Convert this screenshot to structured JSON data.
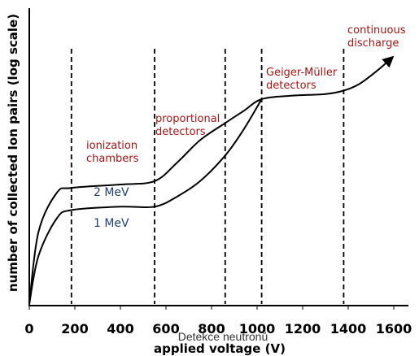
{
  "colors": {
    "axis": "#000000",
    "curve": "#000000",
    "boundary": "#000000",
    "region_label": "#a31515",
    "curve_label": "#1f3f73"
  },
  "chart_data": {
    "type": "line",
    "x_axis": {
      "label": "applied voltage (V)",
      "ticks": [
        "0",
        "200",
        "400",
        "600",
        "800",
        "1000",
        "1200",
        "1400",
        "1600"
      ],
      "range": [
        0,
        1650
      ]
    },
    "y_axis": {
      "label": "number of  collected Ion pairs (log scale)",
      "scale": "log",
      "tick_labels": []
    },
    "subtitle": "Detekce neutronů",
    "region_boundaries_v": [
      185,
      550,
      860,
      1020,
      1380
    ],
    "region_labels": [
      "ionization\nchambers",
      "proportional\ndetectors",
      "Geiger-Müller\ndetectors",
      "continuous\ndischarge"
    ],
    "series": [
      {
        "name": "2 MeV",
        "points": [
          [
            0,
            0.0
          ],
          [
            40,
            0.42
          ],
          [
            120,
            0.65
          ],
          [
            185,
            0.68
          ],
          [
            400,
            0.7
          ],
          [
            550,
            0.72
          ],
          [
            650,
            0.83
          ],
          [
            750,
            0.96
          ],
          [
            860,
            1.06
          ],
          [
            940,
            1.13
          ],
          [
            1020,
            1.2
          ],
          [
            1150,
            1.22
          ],
          [
            1300,
            1.23
          ],
          [
            1380,
            1.25
          ],
          [
            1450,
            1.29
          ],
          [
            1530,
            1.37
          ],
          [
            1590,
            1.44
          ]
        ]
      },
      {
        "name": "1 MeV",
        "points": [
          [
            0,
            0.0
          ],
          [
            40,
            0.28
          ],
          [
            120,
            0.5
          ],
          [
            185,
            0.55
          ],
          [
            400,
            0.57
          ],
          [
            550,
            0.57
          ],
          [
            650,
            0.63
          ],
          [
            750,
            0.72
          ],
          [
            860,
            0.87
          ],
          [
            940,
            1.02
          ],
          [
            1020,
            1.2
          ]
        ]
      }
    ],
    "grid": false
  }
}
